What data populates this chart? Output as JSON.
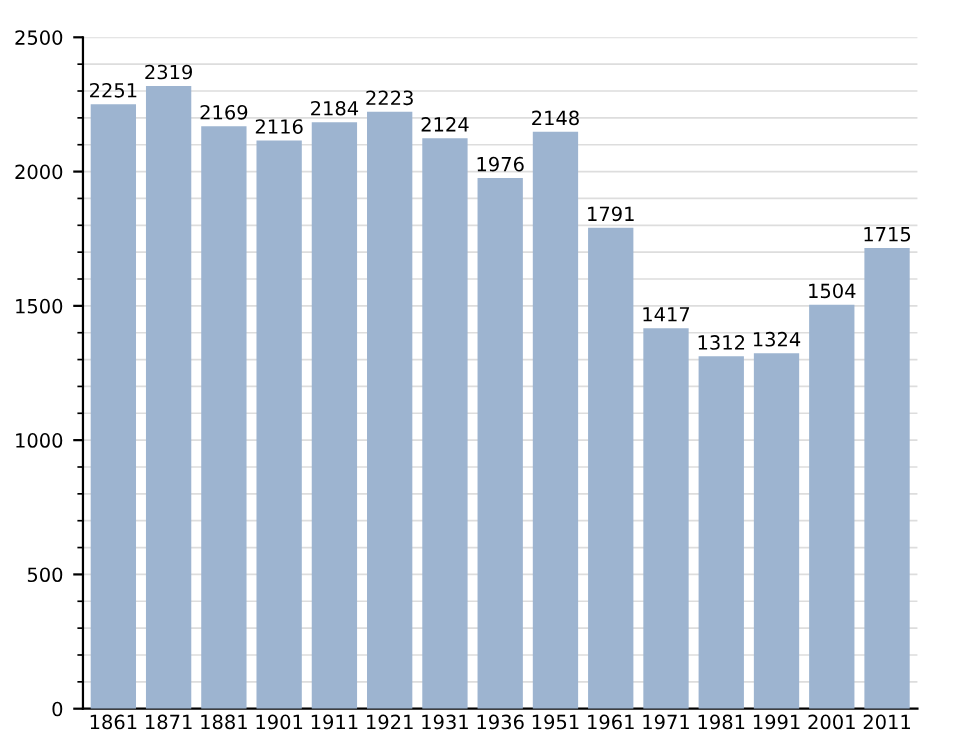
{
  "chart_data": {
    "type": "bar",
    "categories": [
      "1861",
      "1871",
      "1881",
      "1901",
      "1911",
      "1921",
      "1931",
      "1936",
      "1951",
      "1961",
      "1971",
      "1981",
      "1991",
      "2001",
      "2011"
    ],
    "values": [
      2251,
      2319,
      2169,
      2116,
      2184,
      2223,
      2124,
      1976,
      2148,
      1791,
      1417,
      1312,
      1324,
      1504,
      1715
    ],
    "color": "#9db4d0",
    "ylim": [
      0,
      2500
    ],
    "yticks": [
      0,
      500,
      1000,
      1500,
      2000,
      2500
    ],
    "grid": "y",
    "data_labels": true
  }
}
